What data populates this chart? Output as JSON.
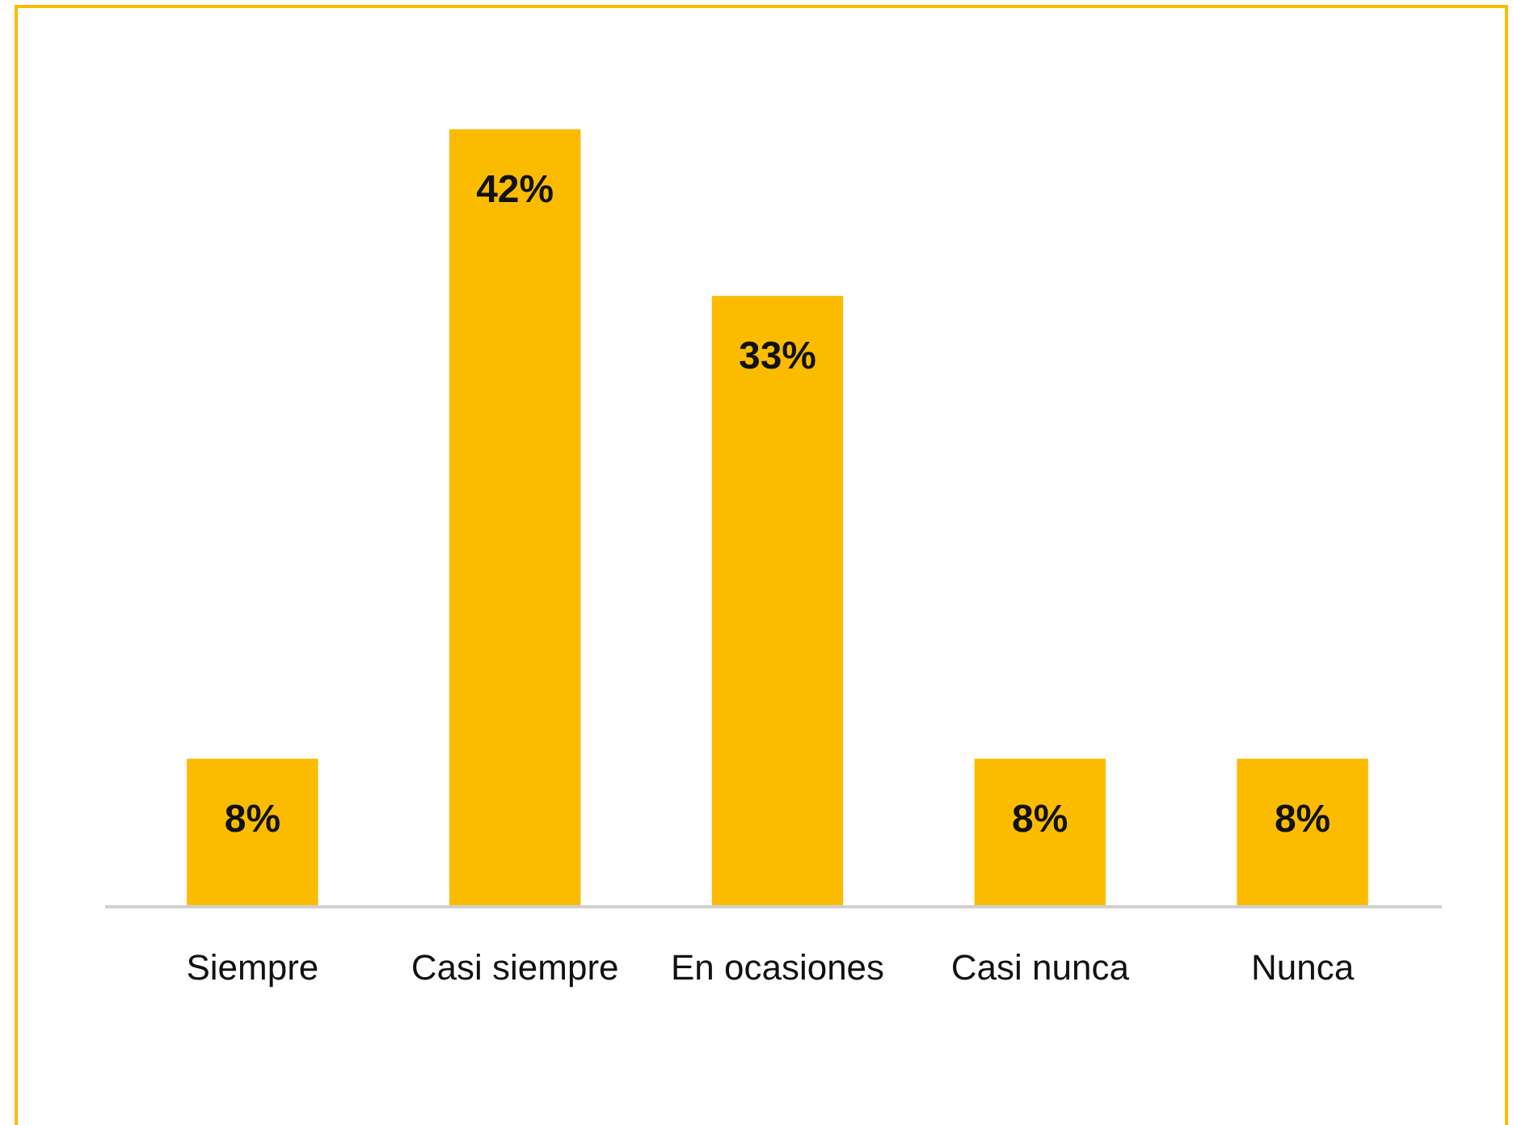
{
  "chart_data": {
    "type": "bar",
    "categories": [
      "Siempre",
      "Casi siempre",
      "En ocasiones",
      "Casi nunca",
      "Nunca"
    ],
    "values": [
      8,
      42,
      33,
      8,
      8
    ],
    "value_labels": [
      "8%",
      "42%",
      "33%",
      "8%",
      "8%"
    ],
    "color": "#fbbc00"
  }
}
